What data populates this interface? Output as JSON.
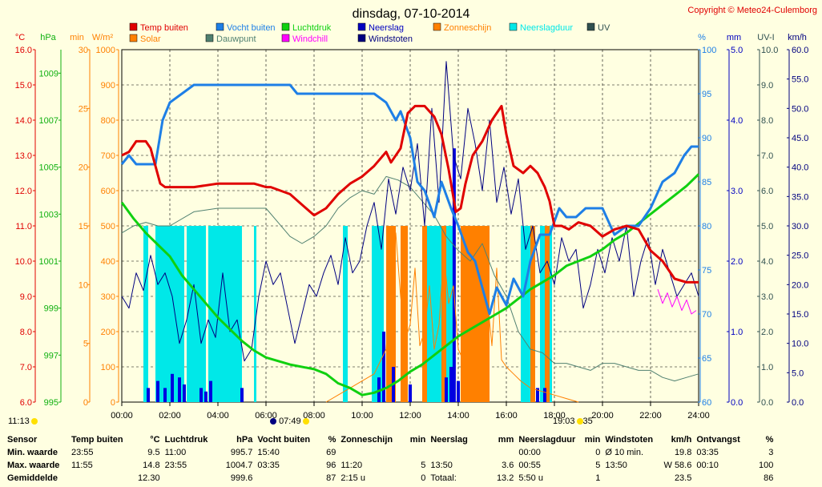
{
  "title": "dinsdag, 07-10-2014",
  "copyright": "Copyright © Meteo24-Culemborg",
  "colors": {
    "temp": "#e00000",
    "humidity": "#1e7fe6",
    "pressure": "#10d010",
    "rain": "#0000e0",
    "sun": "#ff8000",
    "raindur": "#00e8e8",
    "uv": "#305050",
    "solar": "#ff8000",
    "dewpoint": "#508070",
    "windchill": "#ff00ff",
    "gust": "#000080",
    "grid": "#000000",
    "plot_bg": "#ffffe1"
  },
  "legend": [
    {
      "label": "Temp buiten",
      "color": "#e00000"
    },
    {
      "label": "Vocht buiten",
      "color": "#1e7fe6"
    },
    {
      "label": "Luchtdruk",
      "color": "#10d010"
    },
    {
      "label": "Neerslag",
      "color": "#0000c0"
    },
    {
      "label": "Zonneschijn",
      "color": "#ff8000"
    },
    {
      "label": "Neerslagduur",
      "color": "#00e8e8"
    },
    {
      "label": "UV",
      "color": "#305050"
    },
    {
      "label": "Solar",
      "color": "#ff8000"
    },
    {
      "label": "Dauwpunt",
      "color": "#508070"
    },
    {
      "label": "Windchill",
      "color": "#ff00ff"
    },
    {
      "label": "Windstoten",
      "color": "#000080"
    }
  ],
  "axes": {
    "temp": {
      "unit": "°C",
      "ticks": [
        "16.0",
        "15.0",
        "14.0",
        "13.0",
        "12.0",
        "11.0",
        "10.0",
        "9.0",
        "8.0",
        "7.0",
        "6.0"
      ],
      "color": "#e00000"
    },
    "pressure": {
      "unit": "hPa",
      "ticks": [
        "1009",
        "1007",
        "1005",
        "1003",
        "1001",
        "999",
        "997",
        "995"
      ],
      "color": "#10b010"
    },
    "minutes": {
      "unit": "min",
      "ticks": [
        "30",
        "25",
        "20",
        "15",
        "10",
        "5",
        "0"
      ],
      "color": "#ff8000"
    },
    "solar": {
      "unit": "W/m²",
      "ticks": [
        "1000",
        "900",
        "800",
        "700",
        "600",
        "500",
        "400",
        "300",
        "200",
        "100",
        "0"
      ],
      "color": "#ff8000"
    },
    "humidity": {
      "unit": "%",
      "ticks": [
        "100",
        "95",
        "90",
        "85",
        "80",
        "75",
        "70",
        "65",
        "60"
      ],
      "color": "#1e7fe6"
    },
    "rain": {
      "unit": "mm",
      "ticks": [
        "5.0",
        "4.0",
        "3.0",
        "2.0",
        "1.0",
        "0.0"
      ],
      "color": "#0000c0"
    },
    "uv": {
      "unit": "UV-I",
      "ticks": [
        "10.0",
        "9.0",
        "8.0",
        "7.0",
        "6.0",
        "5.0",
        "4.0",
        "3.0",
        "2.0",
        "1.0",
        "0.0"
      ],
      "color": "#305050"
    },
    "wind": {
      "unit": "km/h",
      "ticks": [
        "60.0",
        "55.0",
        "50.0",
        "45.0",
        "40.0",
        "35.0",
        "30.0",
        "25.0",
        "20.0",
        "15.0",
        "10.0",
        "5.0",
        "0.0"
      ],
      "color": "#000080"
    },
    "x_ticks": [
      "00:00",
      "02:00",
      "04:00",
      "06:00",
      "08:00",
      "10:00",
      "12:00",
      "14:00",
      "16:00",
      "18:00",
      "20:00",
      "22:00",
      "24:00"
    ]
  },
  "sun_events": {
    "moonset": "11:13",
    "sunrise": "07:49",
    "sunset": "19:03",
    "moonrise": "35"
  },
  "chart_data": {
    "type": "line",
    "x_unit": "hour",
    "temp_ylim": [
      6,
      16
    ],
    "series": [
      {
        "name": "Temp buiten",
        "axis": "temp",
        "x": [
          0,
          0.3,
          0.6,
          0.8,
          1.0,
          1.2,
          1.4,
          1.6,
          1.8,
          2.0,
          2.5,
          3,
          4,
          5,
          5.5,
          6,
          6.2,
          7,
          7.5,
          8,
          8.5,
          9,
          9.5,
          10,
          10.5,
          11,
          11.2,
          11.6,
          11.9,
          12.2,
          12.6,
          13,
          13.3,
          13.6,
          13.9,
          14.1,
          14.3,
          14.6,
          15,
          15.4,
          15.8,
          16.0,
          16.3,
          16.7,
          17,
          17.3,
          17.6,
          17.8,
          18.0,
          18.3,
          18.6,
          19,
          19.5,
          20,
          20.5,
          21,
          21.5,
          22,
          22.5,
          23,
          23.5,
          24
        ],
        "values": [
          13.0,
          13.1,
          13.4,
          13.4,
          13.4,
          13.2,
          12.7,
          12.2,
          12.1,
          12.1,
          12.1,
          12.1,
          12.2,
          12.2,
          12.2,
          12.1,
          12.1,
          11.9,
          11.6,
          11.3,
          11.5,
          11.9,
          12.2,
          12.4,
          12.7,
          13.1,
          12.8,
          13.2,
          14.2,
          14.4,
          14.4,
          14.1,
          13.6,
          12.6,
          11.4,
          11.5,
          12.2,
          13.0,
          13.4,
          14.0,
          14.4,
          13.6,
          12.7,
          12.5,
          12.7,
          12.5,
          12.1,
          11.7,
          11.0,
          11.0,
          10.9,
          11.1,
          11.0,
          10.7,
          10.9,
          11.0,
          10.9,
          10.3,
          10.0,
          9.5,
          9.4,
          9.4
        ]
      },
      {
        "name": "Vocht buiten",
        "axis": "humidity",
        "x": [
          0,
          0.3,
          0.6,
          1.0,
          1.4,
          1.7,
          2.0,
          2.5,
          3,
          3.5,
          4,
          5,
          6,
          7,
          7.3,
          7.6,
          8,
          8.5,
          9,
          10,
          10.5,
          11,
          11.4,
          11.6,
          12,
          12.3,
          12.6,
          13,
          13.3,
          13.7,
          14,
          14.4,
          14.7,
          15,
          15.3,
          15.6,
          16,
          16.3,
          16.7,
          17,
          17.4,
          17.8,
          18.2,
          18.5,
          18.9,
          19.3,
          19.7,
          20,
          20.5,
          21,
          21.5,
          22,
          22.5,
          23,
          23.4,
          23.7,
          24
        ],
        "values": [
          87,
          88,
          87,
          87,
          87,
          92,
          94,
          95,
          96,
          96,
          96,
          96,
          96,
          96,
          95,
          95,
          95,
          95,
          95,
          95,
          95,
          94,
          92,
          93,
          90,
          85,
          84,
          81,
          85,
          82,
          80,
          77,
          76,
          73,
          70,
          73,
          71,
          74,
          72,
          76,
          79,
          79,
          82,
          81,
          81,
          82,
          82,
          82,
          79,
          80,
          80,
          82,
          85,
          86,
          88,
          89,
          89
        ]
      },
      {
        "name": "Luchtdruk",
        "axis": "pressure",
        "x": [
          0,
          0.5,
          1,
          1.5,
          2,
          2.5,
          3,
          3.5,
          4,
          4.5,
          5,
          5.5,
          6,
          7,
          8,
          8.5,
          9,
          9.5,
          10,
          10.5,
          11,
          11.5,
          12,
          12.5,
          13,
          13.5,
          14,
          14.5,
          15,
          15.5,
          16,
          16.5,
          17,
          17.5,
          18,
          18.5,
          19,
          19.5,
          20,
          20.5,
          21,
          21.5,
          22,
          22.5,
          23,
          23.5,
          24
        ],
        "values": [
          1003.5,
          1002.8,
          1002.2,
          1001.7,
          1001.2,
          1000.4,
          999.8,
          999.2,
          998.6,
          998.1,
          997.6,
          997.2,
          996.9,
          996.6,
          996.4,
          996.2,
          995.8,
          995.6,
          995.3,
          995.4,
          995.6,
          995.9,
          996.3,
          996.6,
          997.0,
          997.4,
          997.8,
          998.1,
          998.4,
          998.7,
          999.0,
          999.4,
          999.8,
          1000.1,
          1000.4,
          1000.8,
          1001.0,
          1001.2,
          1001.5,
          1001.9,
          1002.2,
          1002.6,
          1003.0,
          1003.4,
          1003.8,
          1004.2,
          1004.7
        ]
      },
      {
        "name": "Dauwpunt",
        "axis": "temp",
        "x": [
          0,
          0.5,
          1,
          1.5,
          2,
          3,
          4,
          5,
          6,
          6.5,
          7,
          7.5,
          8,
          8.5,
          9,
          9.5,
          10,
          10.5,
          11,
          11.5,
          12,
          12.5,
          13,
          13.5,
          14,
          14.5,
          15,
          15.5,
          16,
          16.5,
          17,
          17.5,
          18,
          18.5,
          19,
          19.5,
          20,
          20.5,
          21,
          21.5,
          22,
          22.5,
          23,
          23.5,
          24
        ],
        "values": [
          10.8,
          11.0,
          11.1,
          11.0,
          11.0,
          11.4,
          11.5,
          11.5,
          11.5,
          11.1,
          10.7,
          10.5,
          10.7,
          11.0,
          11.5,
          11.8,
          12.0,
          11.9,
          12.4,
          12.3,
          12.1,
          11.7,
          11.3,
          10.7,
          10.3,
          10.0,
          10.5,
          9.6,
          9.0,
          8.0,
          7.5,
          7.4,
          7.1,
          7.1,
          7.0,
          6.9,
          7.1,
          7.1,
          7.0,
          6.9,
          6.9,
          6.7,
          6.6,
          6.7,
          6.8
        ]
      },
      {
        "name": "Windstoten",
        "axis": "wind",
        "x": [
          0,
          0.3,
          0.6,
          0.9,
          1.2,
          1.5,
          1.8,
          2.1,
          2.4,
          2.7,
          3.0,
          3.3,
          3.6,
          3.9,
          4.2,
          4.5,
          4.8,
          5.1,
          5.4,
          5.7,
          6.0,
          6.3,
          6.6,
          6.9,
          7.2,
          7.5,
          7.8,
          8.1,
          8.4,
          8.7,
          9.0,
          9.3,
          9.6,
          9.9,
          10.2,
          10.5,
          10.8,
          11.1,
          11.4,
          11.7,
          12.0,
          12.3,
          12.6,
          12.9,
          13.2,
          13.5,
          13.8,
          14.1,
          14.4,
          14.7,
          15.0,
          15.3,
          15.6,
          15.9,
          16.2,
          16.5,
          16.8,
          17.1,
          17.4,
          17.7,
          18.0,
          18.3,
          18.6,
          18.9,
          19.2,
          19.5,
          19.8,
          20.1,
          20.4,
          20.7,
          21.0,
          21.3,
          21.6,
          21.9,
          22.2,
          22.5,
          22.8,
          23.1,
          23.4,
          23.7,
          24.0
        ],
        "values": [
          18,
          16,
          22,
          19,
          25,
          20,
          22,
          18,
          10,
          14,
          20,
          10,
          14,
          11,
          22,
          12,
          14,
          7,
          9,
          18,
          24,
          20,
          22,
          16,
          10,
          15,
          20,
          18,
          22,
          25,
          20,
          28,
          22,
          24,
          30,
          34,
          26,
          38,
          32,
          40,
          36,
          44,
          30,
          50,
          34,
          58,
          42,
          38,
          50,
          44,
          36,
          48,
          34,
          40,
          32,
          38,
          26,
          30,
          22,
          24,
          20,
          28,
          24,
          26,
          16,
          20,
          26,
          22,
          28,
          24,
          30,
          18,
          24,
          28,
          20,
          26,
          22,
          18,
          20,
          22,
          18
        ]
      },
      {
        "name": "Windchill",
        "axis": "temp",
        "x": [
          22.3,
          22.5,
          22.7,
          22.9,
          23.1,
          23.3,
          23.5,
          23.7,
          23.9
        ],
        "values": [
          9.2,
          8.8,
          9.1,
          8.7,
          9.0,
          8.6,
          8.9,
          8.5,
          8.6
        ]
      },
      {
        "name": "Solar",
        "axis": "solar",
        "x": [
          8.5,
          9.0,
          9.5,
          10.0,
          10.5,
          11.0,
          11.2,
          11.4,
          11.6,
          11.8,
          12.0,
          12.2,
          12.4,
          12.6,
          12.8,
          13.0,
          13.2,
          13.4,
          13.6,
          13.8,
          14.0,
          14.2,
          14.4,
          14.6,
          14.8,
          15.0,
          15.2,
          15.4,
          15.6,
          15.8,
          16.0,
          16.3,
          16.6,
          17.0,
          17.5,
          18.0,
          18.5,
          19.0
        ],
        "values": [
          0,
          20,
          40,
          60,
          80,
          150,
          350,
          480,
          300,
          180,
          220,
          380,
          160,
          200,
          330,
          150,
          220,
          420,
          280,
          330,
          150,
          120,
          180,
          250,
          320,
          470,
          300,
          160,
          380,
          120,
          100,
          80,
          60,
          40,
          30,
          20,
          10,
          0
        ]
      }
    ],
    "bars": [
      {
        "name": "Neerslagduur",
        "axis": "minutes",
        "spans": [
          [
            0.9,
            1.1
          ],
          [
            1.4,
            2.6
          ],
          [
            2.7,
            3.5
          ],
          [
            3.6,
            5.0
          ],
          [
            5.5,
            5.6
          ],
          [
            9.2,
            9.4
          ],
          [
            10.4,
            10.9
          ],
          [
            11.6,
            11.9
          ],
          [
            12.7,
            13.3
          ],
          [
            13.4,
            13.8
          ],
          [
            16.6,
            17.0
          ],
          [
            17.4,
            17.9
          ]
        ],
        "value": 15
      },
      {
        "name": "Zonneschijn",
        "axis": "minutes",
        "spans": [
          [
            11.0,
            11.4
          ],
          [
            11.6,
            11.9
          ],
          [
            12.5,
            12.7
          ],
          [
            13.3,
            13.5
          ],
          [
            14.1,
            15.3
          ],
          [
            17.0,
            17.2
          ],
          [
            17.6,
            17.8
          ]
        ],
        "value": 15
      },
      {
        "name": "Neerslag",
        "axis": "rain",
        "values_x": [
          1.1,
          1.5,
          1.8,
          2.1,
          2.4,
          2.6,
          3.3,
          3.5,
          3.7,
          5.0,
          10.7,
          10.9,
          11.3,
          12.0,
          13.5,
          13.7,
          13.83,
          14.0,
          17.3,
          17.6
        ],
        "values": [
          0.2,
          0.3,
          0.2,
          0.4,
          0.35,
          0.25,
          0.2,
          0.15,
          0.3,
          0.2,
          0.35,
          1.0,
          0.5,
          0.25,
          0.35,
          0.5,
          3.6,
          0.3,
          0.2,
          0.2
        ]
      }
    ]
  },
  "summary": {
    "headers": [
      "Sensor",
      "Temp buiten",
      "°C",
      "Luchtdruk",
      "hPa",
      "Vocht buiten",
      "%",
      "Zonneschijn",
      "min",
      "Neerslag",
      "mm",
      "Neerslagduur",
      "min",
      "Windstoten",
      "km/h",
      "Ontvangst",
      "%"
    ],
    "rows": [
      [
        "Min. waarde",
        "23:55",
        "9.5",
        "11:00",
        "995.7",
        "15:40",
        "69",
        "",
        "",
        "",
        "",
        "00:00",
        "0",
        "Ø 10 min.",
        "19.8",
        "03:35",
        "3"
      ],
      [
        "Max. waarde",
        "11:55",
        "14.8",
        "23:55",
        "1004.7",
        "03:35",
        "96",
        "11:20",
        "5",
        "13:50",
        "3.6",
        "00:55",
        "5",
        "13:50",
        "W 58.6",
        "00:10",
        "100"
      ],
      [
        "Gemiddelde",
        "",
        "12.30",
        "",
        "999.6",
        "",
        "87",
        "2:15 u",
        "0",
        "Totaal:",
        "13.2",
        "5:50 u",
        "1",
        "",
        "23.5",
        "",
        "86"
      ]
    ]
  }
}
